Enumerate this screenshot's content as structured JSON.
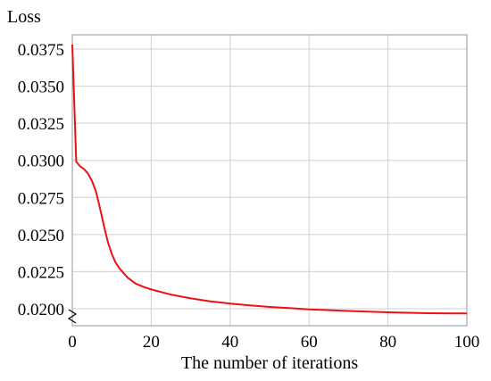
{
  "chart_data": {
    "type": "line",
    "title": "",
    "xlabel": "The number of iterations",
    "ylabel": "Loss",
    "xlim": [
      0,
      100
    ],
    "ylim": [
      0.0195,
      0.0385
    ],
    "xticks": [
      0,
      20,
      40,
      60,
      80,
      100
    ],
    "yticks": [
      0.02,
      0.0225,
      0.025,
      0.0275,
      0.03,
      0.0325,
      0.035,
      0.0375
    ],
    "ytick_labels": [
      "0.0200",
      "0.0225",
      "0.0250",
      "0.0275",
      "0.0300",
      "0.0325",
      "0.0350",
      "0.0375"
    ],
    "xtick_labels": [
      "0",
      "20",
      "40",
      "60",
      "80",
      "100"
    ],
    "grid": true,
    "y_axis_break": true,
    "series": [
      {
        "color": "#ee1111",
        "x": [
          0,
          1,
          2,
          3,
          4,
          5,
          6,
          7,
          8,
          9,
          10,
          11,
          12,
          14,
          16,
          18,
          20,
          25,
          30,
          35,
          40,
          45,
          50,
          55,
          60,
          70,
          80,
          90,
          100
        ],
        "y": [
          0.0378,
          0.0299,
          0.0296,
          0.0294,
          0.0291,
          0.0286,
          0.0279,
          0.0268,
          0.0256,
          0.0245,
          0.0237,
          0.0231,
          0.0227,
          0.0221,
          0.0217,
          0.02148,
          0.0213,
          0.02095,
          0.0207,
          0.0205,
          0.02035,
          0.02022,
          0.02012,
          0.02004,
          0.01995,
          0.01985,
          0.01976,
          0.0197,
          0.01968
        ]
      }
    ]
  }
}
